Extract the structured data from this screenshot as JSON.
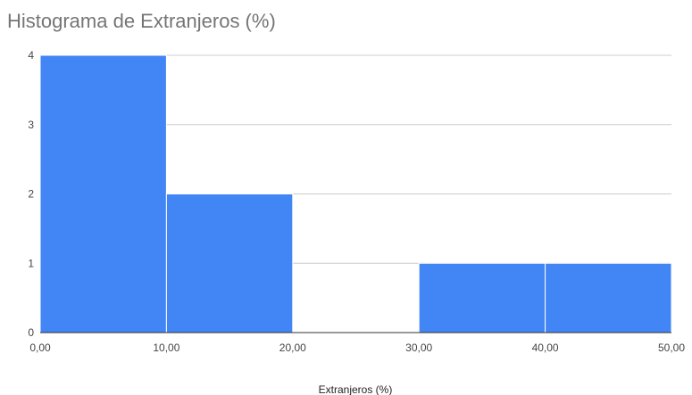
{
  "chart_data": {
    "type": "bar",
    "title": "Histograma de Extranjeros  (%)",
    "xlabel": "Extranjeros  (%)",
    "ylabel": "",
    "bins": [
      {
        "start": 0,
        "end": 10,
        "count": 4
      },
      {
        "start": 10,
        "end": 20,
        "count": 2
      },
      {
        "start": 20,
        "end": 30,
        "count": 0
      },
      {
        "start": 30,
        "end": 40,
        "count": 1
      },
      {
        "start": 40,
        "end": 50,
        "count": 1
      }
    ],
    "x_ticks": [
      "0,00",
      "10,00",
      "20,00",
      "30,00",
      "40,00",
      "50,00"
    ],
    "y_ticks": [
      "0",
      "1",
      "2",
      "3",
      "4"
    ],
    "xlim": [
      0,
      50
    ],
    "ylim": [
      0,
      4
    ],
    "grid": true,
    "legend": "none",
    "colors": {
      "bar": "#4285f4",
      "bar_stroke": "#ffffff",
      "grid": "#cccccc",
      "baseline": "#333333"
    }
  }
}
